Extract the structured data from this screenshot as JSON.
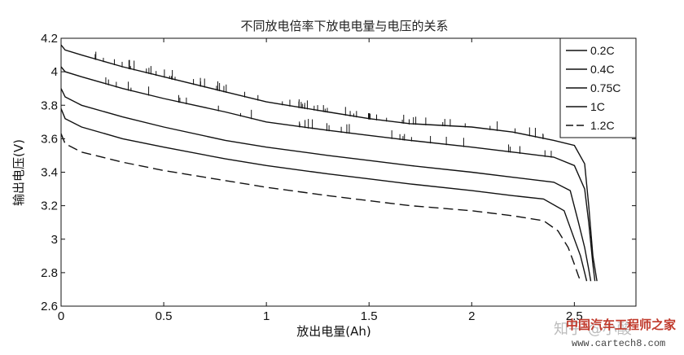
{
  "chart_data": {
    "type": "line",
    "title": "不同放电倍率下放电电量与电压的关系",
    "xlabel": "放出电量(Ah)",
    "ylabel": "输出电压(V)",
    "xlim": [
      0,
      2.8
    ],
    "ylim": [
      2.6,
      4.2
    ],
    "xticks": [
      "0",
      "0.5",
      "1",
      "1.5",
      "2",
      "2.5"
    ],
    "yticks": [
      "2.6",
      "2.8",
      "3",
      "3.2",
      "3.4",
      "3.6",
      "3.8",
      "4",
      "4.2"
    ],
    "grid": false,
    "legend_position": "top-right",
    "series": [
      {
        "name": "0.2C",
        "dash": "solid",
        "x": [
          0,
          0.02,
          0.1,
          0.3,
          0.5,
          0.8,
          1.0,
          1.3,
          1.5,
          1.7,
          2.0,
          2.2,
          2.4,
          2.5,
          2.55,
          2.57,
          2.59,
          2.61
        ],
        "y": [
          4.16,
          4.13,
          4.1,
          4.03,
          3.97,
          3.88,
          3.82,
          3.76,
          3.72,
          3.69,
          3.67,
          3.64,
          3.59,
          3.56,
          3.45,
          3.2,
          2.9,
          2.75
        ]
      },
      {
        "name": "0.4C",
        "dash": "solid",
        "x": [
          0,
          0.02,
          0.1,
          0.3,
          0.5,
          0.8,
          1.0,
          1.3,
          1.5,
          1.7,
          2.0,
          2.2,
          2.4,
          2.5,
          2.55,
          2.57,
          2.59,
          2.6
        ],
        "y": [
          4.03,
          4.0,
          3.97,
          3.9,
          3.84,
          3.76,
          3.7,
          3.65,
          3.62,
          3.59,
          3.55,
          3.52,
          3.49,
          3.44,
          3.3,
          3.1,
          2.85,
          2.75
        ]
      },
      {
        "name": "0.75C",
        "dash": "solid",
        "x": [
          0,
          0.02,
          0.1,
          0.3,
          0.5,
          0.8,
          1.0,
          1.3,
          1.5,
          1.7,
          2.0,
          2.2,
          2.4,
          2.48,
          2.52,
          2.55,
          2.57,
          2.58
        ],
        "y": [
          3.9,
          3.85,
          3.8,
          3.73,
          3.67,
          3.59,
          3.55,
          3.5,
          3.47,
          3.44,
          3.4,
          3.37,
          3.34,
          3.29,
          3.1,
          2.95,
          2.82,
          2.75
        ]
      },
      {
        "name": "1C",
        "dash": "solid",
        "x": [
          0,
          0.02,
          0.1,
          0.3,
          0.5,
          0.8,
          1.0,
          1.3,
          1.5,
          1.7,
          2.0,
          2.2,
          2.35,
          2.45,
          2.5,
          2.53,
          2.55,
          2.56
        ],
        "y": [
          3.78,
          3.72,
          3.67,
          3.6,
          3.55,
          3.48,
          3.44,
          3.39,
          3.36,
          3.33,
          3.29,
          3.26,
          3.24,
          3.17,
          3.0,
          2.9,
          2.8,
          2.75
        ]
      },
      {
        "name": "1.2C",
        "dash": "dashed",
        "x": [
          0,
          0.02,
          0.1,
          0.3,
          0.5,
          0.8,
          1.0,
          1.3,
          1.5,
          1.7,
          2.0,
          2.2,
          2.35,
          2.42,
          2.47,
          2.5,
          2.52,
          2.53
        ],
        "y": [
          3.63,
          3.57,
          3.52,
          3.46,
          3.41,
          3.35,
          3.31,
          3.26,
          3.23,
          3.2,
          3.17,
          3.14,
          3.11,
          3.05,
          2.95,
          2.85,
          2.78,
          2.75
        ]
      }
    ]
  },
  "watermarks": {
    "site_name": "中国汽车工程师之家",
    "site_url": "www.cartech8.com",
    "platform": "知乎 @小酸"
  }
}
